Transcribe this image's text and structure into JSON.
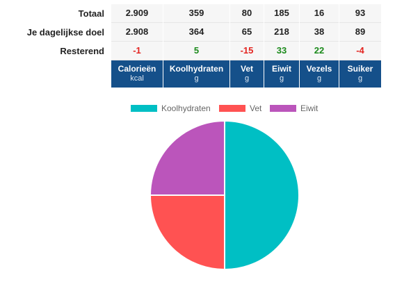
{
  "rows": [
    {
      "label": "Totaal",
      "values": [
        "2.909",
        "359",
        "80",
        "185",
        "16",
        "93"
      ]
    },
    {
      "label": "Je dagelijkse doel",
      "values": [
        "2.908",
        "364",
        "65",
        "218",
        "38",
        "89"
      ]
    },
    {
      "label": "Resterend",
      "values": [
        "-1",
        "5",
        "-15",
        "33",
        "22",
        "-4"
      ]
    }
  ],
  "columns": [
    {
      "name": "Calorieën",
      "unit": "kcal"
    },
    {
      "name": "Koolhydraten",
      "unit": "g"
    },
    {
      "name": "Vet",
      "unit": "g"
    },
    {
      "name": "Eiwit",
      "unit": "g"
    },
    {
      "name": "Vezels",
      "unit": "g"
    },
    {
      "name": "Suiker",
      "unit": "g"
    }
  ],
  "colors": {
    "header_bg": "#15508a",
    "positive": "#1b8a1b",
    "negative": "#e3231f"
  },
  "chart_data": {
    "type": "pie",
    "categories": [
      "Koolhydraten",
      "Vet",
      "Eiwit"
    ],
    "values": [
      50,
      25,
      25
    ],
    "colors": [
      "#00bfc4",
      "#ff5252",
      "#bb55bb"
    ],
    "legend": "top"
  }
}
